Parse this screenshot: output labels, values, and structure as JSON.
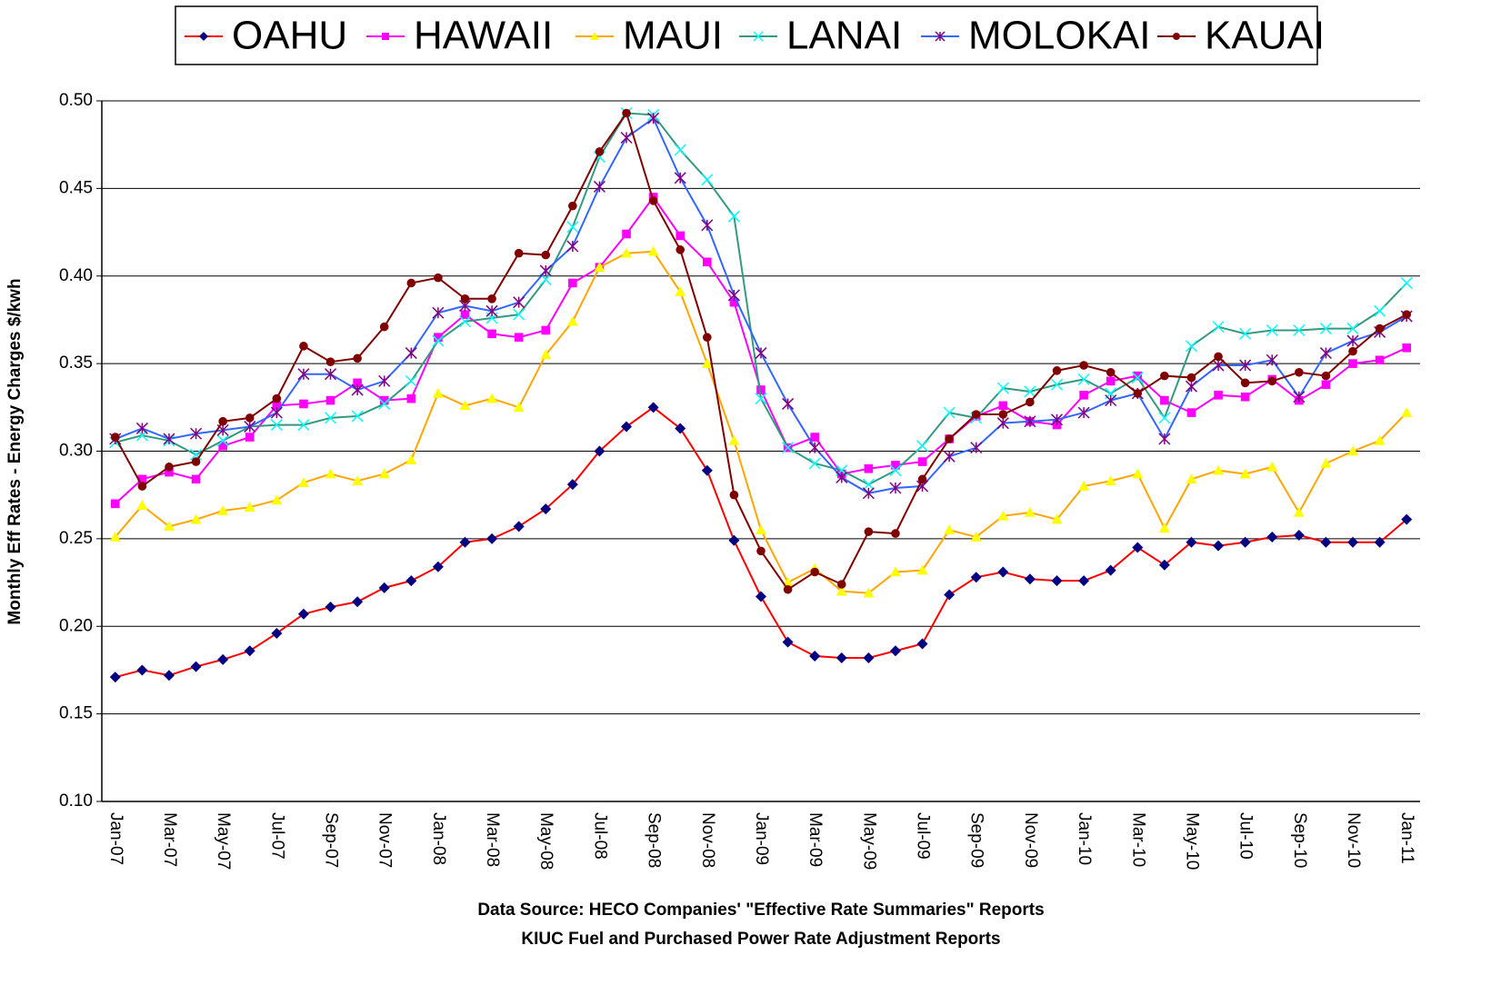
{
  "chart_data": {
    "type": "line",
    "y_label": "Monthly Eff Rates - Energy Charges  $/kwh",
    "source_lines": [
      "Data Source:  HECO Companies' \"Effective Rate Summaries\" Reports",
      "KIUC Fuel and Purchased Power Rate Adjustment Reports"
    ],
    "categories": [
      "Jan-07",
      null,
      "Mar-07",
      null,
      "May-07",
      null,
      "Jul-07",
      null,
      "Sep-07",
      null,
      "Nov-07",
      null,
      "Jan-08",
      null,
      "Mar-08",
      null,
      "May-08",
      null,
      "Jul-08",
      null,
      "Sep-08",
      null,
      "Nov-08",
      null,
      "Jan-09",
      null,
      "Mar-09",
      null,
      "May-09",
      null,
      "Jul-09",
      null,
      "Sep-09",
      null,
      "Nov-09",
      null,
      "Jan-10",
      null,
      "Mar-10",
      null,
      "May-10",
      null,
      "Jul-10",
      null,
      "Sep-10",
      null,
      "Nov-10",
      null,
      "Jan-11"
    ],
    "ylim": [
      0.1,
      0.5
    ],
    "yticks": [
      {
        "value": 0.1,
        "label": "0.10"
      },
      0.15,
      {
        "value": 0.2,
        "label": "0.20"
      },
      0.25,
      {
        "value": 0.3,
        "label": "0.30"
      },
      0.35,
      {
        "value": 0.4,
        "label": "0.40"
      },
      0.45,
      {
        "value": 0.5,
        "label": "0.50"
      }
    ],
    "grid": true,
    "legend": "top",
    "series": [
      {
        "name": "OAHU",
        "color": "#ff0000",
        "marker": "diamond",
        "marker_color": "#000080",
        "values": [
          0.171,
          0.175,
          0.172,
          0.177,
          0.181,
          0.186,
          0.196,
          0.207,
          0.211,
          0.214,
          0.222,
          0.226,
          0.234,
          0.248,
          0.25,
          0.257,
          0.267,
          0.281,
          0.3,
          0.314,
          0.325,
          0.313,
          0.289,
          0.249,
          0.217,
          0.191,
          0.183,
          0.182,
          0.182,
          0.186,
          0.19,
          0.218,
          0.228,
          0.231,
          0.227,
          0.226,
          0.226,
          0.232,
          0.245,
          0.235,
          0.248,
          0.246,
          0.248,
          0.251,
          0.252,
          0.248,
          0.248,
          0.248,
          0.261
        ]
      },
      {
        "name": "HAWAII",
        "color": "#ff00ff",
        "marker": "square",
        "marker_color": "#ff00ff",
        "values": [
          0.27,
          0.284,
          0.288,
          0.284,
          0.303,
          0.308,
          0.326,
          0.327,
          0.329,
          0.339,
          0.329,
          0.33,
          0.365,
          0.378,
          0.367,
          0.365,
          0.369,
          0.396,
          0.405,
          0.424,
          0.445,
          0.423,
          0.408,
          0.385,
          0.335,
          0.302,
          0.308,
          0.287,
          0.29,
          0.292,
          0.294,
          0.307,
          0.32,
          0.326,
          0.317,
          0.315,
          0.332,
          0.34,
          0.343,
          0.329,
          0.322,
          0.332,
          0.331,
          0.341,
          0.329,
          0.338,
          0.35,
          0.352,
          0.359
        ]
      },
      {
        "name": "MAUI",
        "color": "#ffa500",
        "marker": "triangle",
        "marker_color": "#ffff00",
        "values": [
          0.251,
          0.269,
          0.257,
          0.261,
          0.266,
          0.268,
          0.272,
          0.282,
          0.287,
          0.283,
          0.287,
          0.295,
          0.333,
          0.326,
          0.33,
          0.325,
          0.355,
          0.374,
          0.405,
          0.413,
          0.414,
          0.391,
          0.35,
          0.306,
          0.255,
          0.225,
          0.233,
          0.22,
          0.219,
          0.231,
          0.232,
          0.255,
          0.251,
          0.263,
          0.265,
          0.261,
          0.28,
          0.283,
          0.287,
          0.256,
          0.284,
          0.289,
          0.287,
          0.291,
          0.265,
          0.293,
          0.3,
          0.306,
          0.322
        ]
      },
      {
        "name": "LANAI",
        "color": "#339980",
        "marker": "x",
        "marker_color": "#00ffff",
        "values": [
          0.305,
          0.309,
          0.306,
          0.298,
          0.306,
          0.314,
          0.315,
          0.315,
          0.319,
          0.32,
          0.327,
          0.34,
          0.363,
          0.374,
          0.376,
          0.378,
          0.398,
          0.428,
          0.468,
          0.493,
          0.492,
          0.472,
          0.455,
          0.434,
          0.33,
          0.302,
          0.293,
          0.289,
          0.281,
          0.289,
          0.303,
          0.322,
          0.319,
          0.336,
          0.334,
          0.338,
          0.341,
          0.333,
          0.342,
          0.319,
          0.36,
          0.371,
          0.367,
          0.369,
          0.369,
          0.37,
          0.37,
          0.38,
          0.396
        ]
      },
      {
        "name": "MOLOKAI",
        "color": "#3366ff",
        "marker": "star",
        "marker_color": "#800080",
        "values": [
          0.307,
          0.313,
          0.307,
          0.31,
          0.312,
          0.314,
          0.322,
          0.344,
          0.344,
          0.335,
          0.34,
          0.356,
          0.379,
          0.383,
          0.38,
          0.385,
          0.403,
          0.417,
          0.451,
          0.479,
          0.49,
          0.456,
          0.429,
          0.389,
          0.356,
          0.327,
          0.302,
          0.285,
          0.276,
          0.279,
          0.28,
          0.297,
          0.302,
          0.316,
          0.317,
          0.318,
          0.322,
          0.329,
          0.333,
          0.307,
          0.337,
          0.349,
          0.349,
          0.352,
          0.331,
          0.356,
          0.363,
          0.368,
          0.377
        ]
      },
      {
        "name": "KAUAI",
        "color": "#800000",
        "marker": "circle",
        "marker_color": "#800000",
        "values": [
          0.308,
          0.28,
          0.291,
          0.294,
          0.317,
          0.319,
          0.33,
          0.36,
          0.351,
          0.353,
          0.371,
          0.396,
          0.399,
          0.387,
          0.387,
          0.413,
          0.412,
          0.44,
          0.471,
          0.493,
          0.443,
          0.415,
          0.365,
          0.275,
          0.243,
          0.221,
          0.231,
          0.224,
          0.254,
          0.253,
          0.284,
          0.307,
          0.321,
          0.321,
          0.328,
          0.346,
          0.349,
          0.345,
          0.333,
          0.343,
          0.342,
          0.354,
          0.339,
          0.34,
          0.345,
          0.343,
          0.357,
          0.37,
          0.378
        ]
      }
    ]
  }
}
